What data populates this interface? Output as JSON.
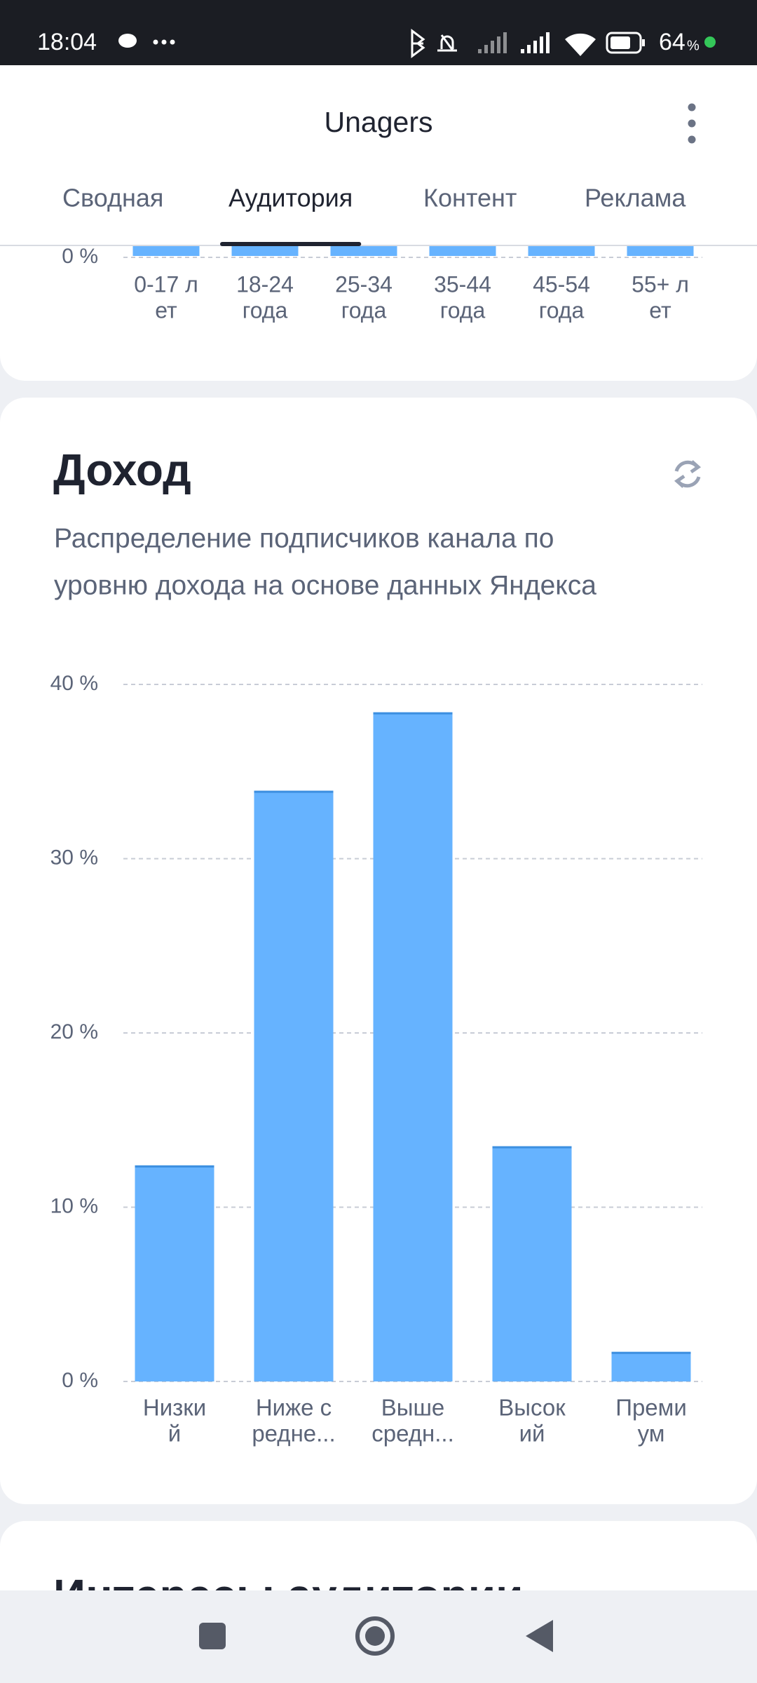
{
  "status_bar": {
    "time": "18:04",
    "battery_level": "64",
    "battery_unit": "%"
  },
  "header": {
    "title": "Unagers"
  },
  "tabs": {
    "items": [
      "Сводная",
      "Аудитория",
      "Контент",
      "Реклама"
    ],
    "active": 1
  },
  "chart_data": [
    {
      "type": "bar",
      "categories": [
        [
          "0-17 л",
          "ет"
        ],
        [
          "18-24",
          "года"
        ],
        [
          "25-34",
          "года"
        ],
        [
          "35-44",
          "года"
        ],
        [
          "45-54",
          "года"
        ],
        [
          "55+ л",
          "ет"
        ]
      ],
      "yticks": [
        {
          "value": 0,
          "label": "0 %"
        }
      ],
      "color": "#66b3ff",
      "grid": true
    },
    {
      "type": "bar",
      "title": "Доход",
      "subtitle": [
        "Распределение подписчиков канала по",
        "уровню дохода на основе данных Яндекса"
      ],
      "categories": [
        [
          "Низки",
          "й"
        ],
        [
          "Ниже с",
          "редне..."
        ],
        [
          "Выше",
          "средн..."
        ],
        [
          "Высок",
          "ий"
        ],
        [
          "Преми",
          "ум"
        ]
      ],
      "values": [
        12.4,
        33.9,
        38.4,
        13.5,
        1.7
      ],
      "color": "#66b3ff",
      "ylim": [
        0,
        40
      ],
      "yticks": [
        {
          "value": 0,
          "label": "0 %"
        },
        {
          "value": 10,
          "label": "10 %"
        },
        {
          "value": 20,
          "label": "20 %"
        },
        {
          "value": 30,
          "label": "30 %"
        },
        {
          "value": 40,
          "label": "40 %"
        }
      ],
      "grid": true
    }
  ],
  "next_card": {
    "title": "Интересы аудитории"
  }
}
